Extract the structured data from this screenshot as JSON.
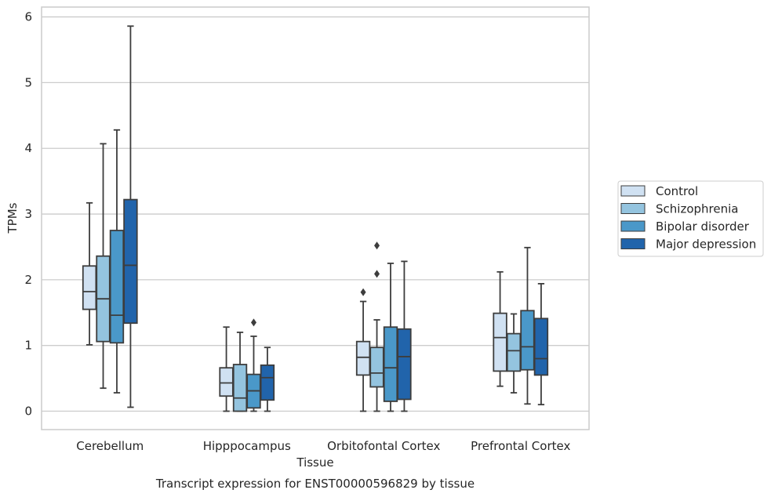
{
  "caption": "Transcript expression for ENST00000596829 by tissue",
  "chart_data": {
    "type": "boxplot",
    "xlabel": "Tissue",
    "ylabel": "TPMs",
    "ylim": [
      -0.28,
      6.15
    ],
    "yticks": [
      0,
      1,
      2,
      3,
      4,
      5,
      6
    ],
    "grid": "horizontal",
    "legend_position": "right",
    "categories": [
      "Cerebellum",
      "Hipppocampus",
      "Orbitofontal Cortex",
      "Prefrontal Cortex"
    ],
    "series": [
      {
        "name": "Control",
        "color": "#d0e1f2",
        "boxes": [
          {
            "whisker_low": 1.01,
            "q1": 1.55,
            "median": 1.82,
            "q3": 2.21,
            "whisker_high": 3.17,
            "outliers": []
          },
          {
            "whisker_low": 0.0,
            "q1": 0.23,
            "median": 0.43,
            "q3": 0.66,
            "whisker_high": 1.28,
            "outliers": []
          },
          {
            "whisker_low": 0.0,
            "q1": 0.55,
            "median": 0.82,
            "q3": 1.06,
            "whisker_high": 1.67,
            "outliers": [
              1.81
            ]
          },
          {
            "whisker_low": 0.38,
            "q1": 0.61,
            "median": 1.12,
            "q3": 1.49,
            "whisker_high": 2.12,
            "outliers": []
          }
        ]
      },
      {
        "name": "Schizophrenia",
        "color": "#94c4df",
        "boxes": [
          {
            "whisker_low": 0.35,
            "q1": 1.06,
            "median": 1.71,
            "q3": 2.36,
            "whisker_high": 4.07,
            "outliers": []
          },
          {
            "whisker_low": 0.0,
            "q1": 0.0,
            "median": 0.2,
            "q3": 0.71,
            "whisker_high": 1.2,
            "outliers": []
          },
          {
            "whisker_low": 0.0,
            "q1": 0.37,
            "median": 0.58,
            "q3": 0.97,
            "whisker_high": 1.39,
            "outliers": [
              2.09,
              2.52
            ]
          },
          {
            "whisker_low": 0.28,
            "q1": 0.61,
            "median": 0.92,
            "q3": 1.18,
            "whisker_high": 1.48,
            "outliers": []
          }
        ]
      },
      {
        "name": "Bipolar disorder",
        "color": "#4a98c9",
        "boxes": [
          {
            "whisker_low": 0.28,
            "q1": 1.04,
            "median": 1.46,
            "q3": 2.75,
            "whisker_high": 4.28,
            "outliers": []
          },
          {
            "whisker_low": 0.0,
            "q1": 0.05,
            "median": 0.31,
            "q3": 0.56,
            "whisker_high": 1.14,
            "outliers": [
              1.35
            ]
          },
          {
            "whisker_low": 0.0,
            "q1": 0.15,
            "median": 0.66,
            "q3": 1.28,
            "whisker_high": 2.25,
            "outliers": []
          },
          {
            "whisker_low": 0.11,
            "q1": 0.63,
            "median": 0.98,
            "q3": 1.53,
            "whisker_high": 2.49,
            "outliers": []
          }
        ]
      },
      {
        "name": "Major depression",
        "color": "#2164ab",
        "boxes": [
          {
            "whisker_low": 0.06,
            "q1": 1.34,
            "median": 2.22,
            "q3": 3.22,
            "whisker_high": 5.86,
            "outliers": []
          },
          {
            "whisker_low": 0.0,
            "q1": 0.17,
            "median": 0.51,
            "q3": 0.7,
            "whisker_high": 0.97,
            "outliers": []
          },
          {
            "whisker_low": 0.0,
            "q1": 0.18,
            "median": 0.83,
            "q3": 1.25,
            "whisker_high": 2.28,
            "outliers": []
          },
          {
            "whisker_low": 0.1,
            "q1": 0.55,
            "median": 0.8,
            "q3": 1.41,
            "whisker_high": 1.94,
            "outliers": []
          }
        ]
      }
    ]
  }
}
